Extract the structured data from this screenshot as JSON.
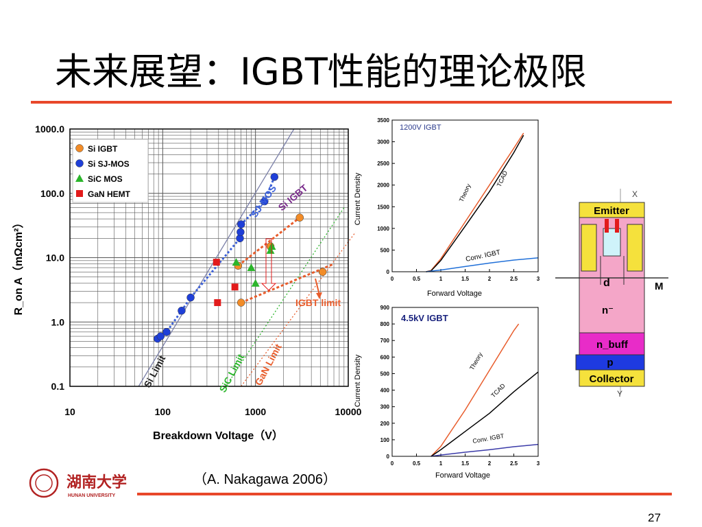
{
  "slide": {
    "title": "未来展望：IGBT性能的理论极限",
    "citation": "（A. Nakagawa 2006）",
    "page_number": "27",
    "accent_color": "#E8472A",
    "logo": {
      "university_cn": "湖南大学",
      "university_en": "HUNAN UNIVERSITY",
      "color": "#B22222"
    }
  },
  "chart_data": [
    {
      "type": "scatter",
      "xlabel": "Breakdown Voltage（V）",
      "ylabel": "R_on A（mΩcm²）",
      "x_scale": "log",
      "y_scale": "log",
      "xlim": [
        10,
        10000
      ],
      "ylim": [
        0.1,
        1000
      ],
      "x_ticks": [
        "10",
        "100",
        "1000",
        "10000"
      ],
      "y_ticks": [
        "1000.0",
        "100.0",
        "10.0",
        "1.0",
        "0.1"
      ],
      "grid": true,
      "legend_position": "top-left",
      "series": [
        {
          "name": "Si IGBT",
          "color": "#F28C28",
          "marker": "circle",
          "x": [
            650,
            700,
            1450,
            3000,
            5300
          ],
          "y": [
            7.5,
            2.0,
            15.0,
            42.0,
            6.0
          ]
        },
        {
          "name": "Si SJ-MOS",
          "color": "#1F3FD8",
          "marker": "circle",
          "x": [
            88,
            95,
            110,
            200,
            160,
            680,
            690,
            700,
            1250,
            1600
          ],
          "y": [
            0.55,
            0.6,
            0.7,
            2.4,
            1.5,
            20.0,
            25.0,
            33.0,
            75.0,
            180.0
          ]
        },
        {
          "name": "SiC MOS",
          "color": "#2BB52B",
          "marker": "triangle",
          "x": [
            620,
            900,
            1000,
            1450,
            1500
          ],
          "y": [
            8.5,
            7.0,
            4.0,
            13.0,
            15.0
          ]
        },
        {
          "name": "GaN HEMT",
          "color": "#E21B1B",
          "marker": "square",
          "x": [
            380,
            390,
            600
          ],
          "y": [
            8.5,
            2.0,
            3.5
          ]
        }
      ],
      "limit_lines": [
        {
          "name": "Si Limit",
          "color": "#7A7FA8",
          "x": [
            55,
            2600
          ],
          "y": [
            0.1,
            1000
          ]
        },
        {
          "name": "SiC Limit",
          "color": "#2BB52B",
          "x": [
            480,
            9000
          ],
          "y": [
            0.1,
            60
          ]
        },
        {
          "name": "GaN Limit",
          "color": "#E85C2B",
          "x": [
            700,
            12000
          ],
          "y": [
            0.1,
            25
          ]
        },
        {
          "name": "Si IGBT",
          "color": "#E85C2B",
          "x": [
            650,
            3000
          ],
          "y": [
            7.5,
            42
          ]
        },
        {
          "name": "IGBT limit",
          "color": "#E85C2B",
          "x": [
            700,
            7000
          ],
          "y": [
            2.0,
            8.0
          ]
        }
      ],
      "annotations": [
        "SJ-MOS",
        "Si IGBT",
        "IGBT limit",
        "Si Limit",
        "SiC Limit",
        "GaN Limit"
      ]
    },
    {
      "type": "line",
      "title": "1200V IGBT",
      "xlabel": "Forward Voltage",
      "ylabel": "Current Density",
      "xlim": [
        0,
        3
      ],
      "ylim": [
        0,
        3500
      ],
      "x_ticks": [
        "0",
        "0.5",
        "1",
        "1.5",
        "2",
        "2.5",
        "3"
      ],
      "y_ticks": [
        "0",
        "500",
        "1000",
        "1500",
        "2000",
        "2500",
        "3000",
        "3500"
      ],
      "series": [
        {
          "name": "Theory",
          "color": "#E85C2B",
          "x": [
            0.7,
            0.8,
            1.0,
            1.5,
            2.0,
            2.5,
            2.7
          ],
          "y": [
            0,
            30,
            300,
            1150,
            2000,
            2850,
            3200
          ]
        },
        {
          "name": "TCAD",
          "color": "#000000",
          "x": [
            0.7,
            0.8,
            1.0,
            1.5,
            2.0,
            2.5,
            2.7
          ],
          "y": [
            0,
            20,
            260,
            1050,
            1850,
            2750,
            3150
          ]
        },
        {
          "name": "Conv. IGBT",
          "color": "#1F6FD8",
          "x": [
            0.7,
            1.0,
            1.5,
            2.0,
            2.5,
            3.0
          ],
          "y": [
            0,
            40,
            120,
            200,
            270,
            320
          ]
        }
      ]
    },
    {
      "type": "line",
      "title": "4.5kV IGBT",
      "xlabel": "Forward Voltage",
      "ylabel": "Current Density",
      "xlim": [
        0,
        3
      ],
      "ylim": [
        0,
        900
      ],
      "x_ticks": [
        "0",
        "0.5",
        "1",
        "1.5",
        "2",
        "2.5",
        "3"
      ],
      "y_ticks": [
        "0",
        "100",
        "200",
        "300",
        "400",
        "500",
        "600",
        "700",
        "800",
        "900"
      ],
      "series": [
        {
          "name": "Theory",
          "color": "#E85C2B",
          "x": [
            0.8,
            1.0,
            1.5,
            2.0,
            2.5,
            2.6
          ],
          "y": [
            0,
            60,
            280,
            520,
            760,
            800
          ]
        },
        {
          "name": "TCAD",
          "color": "#000000",
          "x": [
            0.8,
            1.0,
            1.5,
            2.0,
            2.5,
            3.0
          ],
          "y": [
            0,
            40,
            150,
            260,
            390,
            510
          ]
        },
        {
          "name": "Conv. IGBT",
          "color": "#3A3AA8",
          "x": [
            0.8,
            1.0,
            1.5,
            2.0,
            2.5,
            3.0
          ],
          "y": [
            0,
            8,
            25,
            40,
            58,
            72
          ]
        }
      ]
    }
  ],
  "cross_section": {
    "labels": [
      "Emitter",
      "d",
      "n⁻",
      "n_buff",
      "p",
      "Collector",
      "X",
      "Y",
      "M"
    ],
    "layers": [
      {
        "name": "Emitter",
        "color": "#F5E13C"
      },
      {
        "name": "n⁻",
        "color": "#F4A6C8"
      },
      {
        "name": "n_buff",
        "color": "#E82CC8"
      },
      {
        "name": "p",
        "color": "#1E3AE0"
      },
      {
        "name": "Collector",
        "color": "#F5E13C"
      }
    ]
  }
}
